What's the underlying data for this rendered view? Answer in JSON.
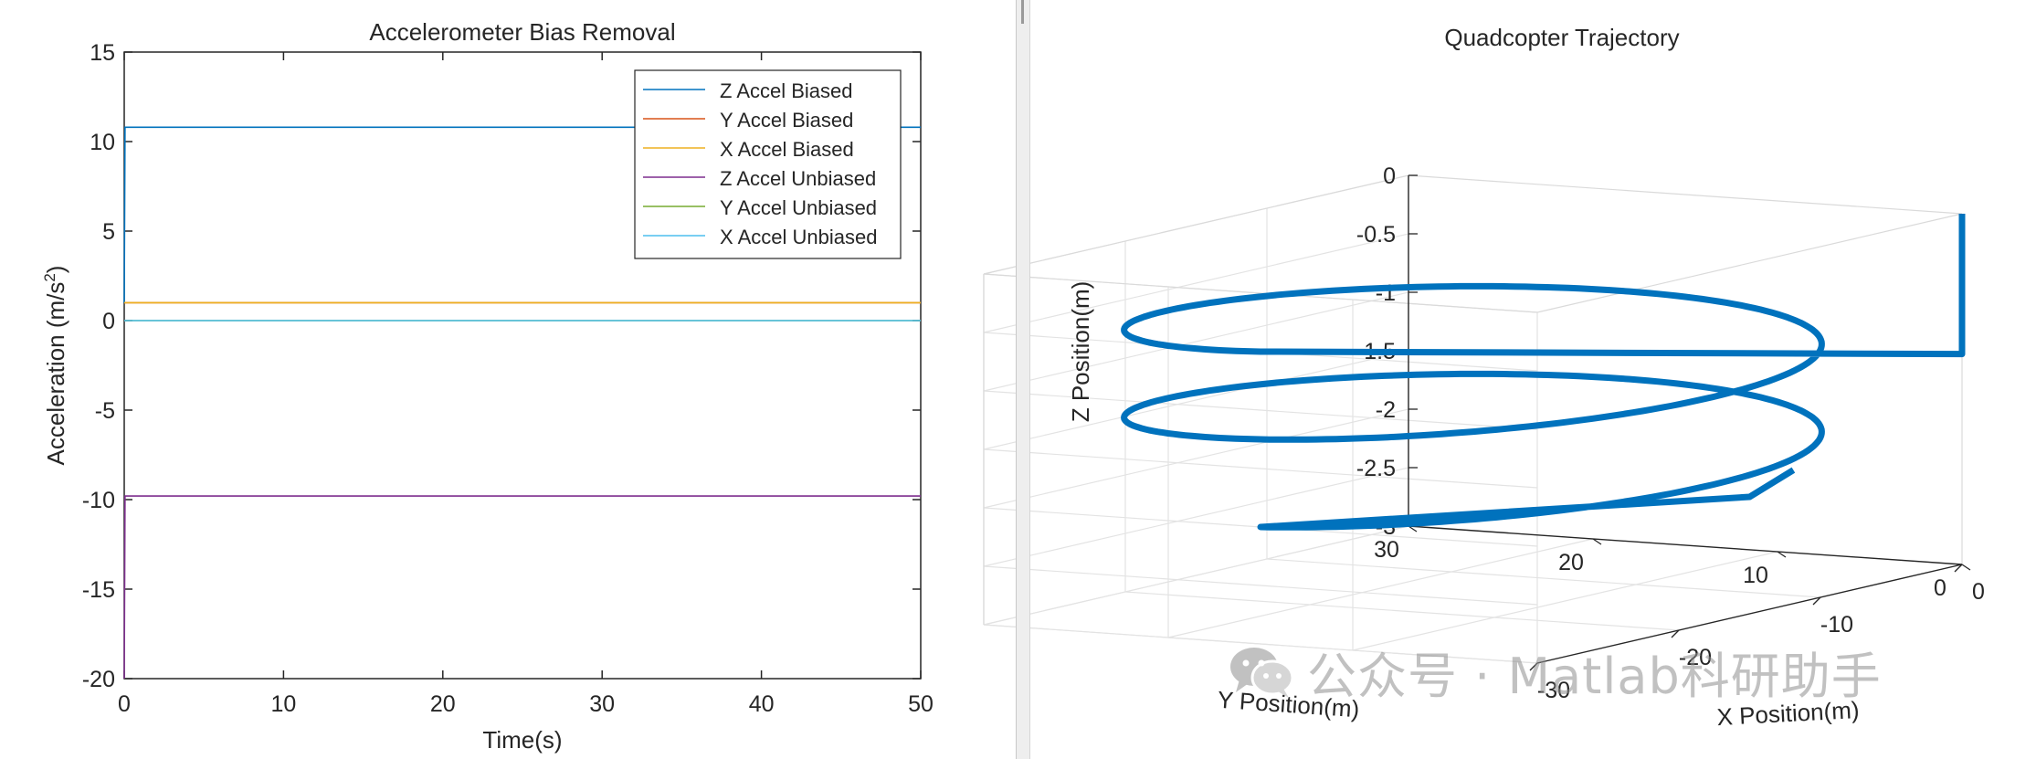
{
  "chart_data": [
    {
      "type": "line",
      "title": "Accelerometer Bias Removal",
      "xlabel": "Time(s)",
      "ylabel": "Acceleration (m/s",
      "ylabel_sup": "2",
      "ylabel_close": ")",
      "xlim": [
        0,
        50
      ],
      "ylim": [
        -20,
        15
      ],
      "xticks": [
        0,
        10,
        20,
        30,
        40,
        50
      ],
      "yticks": [
        15,
        10,
        5,
        0,
        -5,
        -10,
        -15,
        -20
      ],
      "grid": false,
      "legend_position": "top-right",
      "series": [
        {
          "name": "Z Accel Biased",
          "color": "#0072BD",
          "x": [
            0,
            0.05,
            50
          ],
          "y": [
            1.0,
            10.8,
            10.8
          ]
        },
        {
          "name": "Y Accel Biased",
          "color": "#D95319",
          "x": [
            0,
            0.05,
            50
          ],
          "y": [
            1.0,
            1.0,
            1.0
          ]
        },
        {
          "name": "X Accel Biased",
          "color": "#EDB120",
          "x": [
            0,
            0.05,
            50
          ],
          "y": [
            1.0,
            1.0,
            1.0
          ]
        },
        {
          "name": "Z Accel Unbiased",
          "color": "#7E2F8E",
          "x": [
            0,
            0.05,
            50
          ],
          "y": [
            -20.0,
            -9.8,
            -9.8
          ]
        },
        {
          "name": "Y Accel Unbiased",
          "color": "#77AC30",
          "x": [
            0,
            0.05,
            50
          ],
          "y": [
            0.0,
            0.0,
            0.0
          ]
        },
        {
          "name": "X Accel Unbiased",
          "color": "#4DBEEE",
          "x": [
            0,
            0.05,
            50
          ],
          "y": [
            0.0,
            0.0,
            0.0
          ]
        }
      ]
    },
    {
      "type": "line3d",
      "title": "Quadcopter Trajectory",
      "xlabel": "X Position(m)",
      "ylabel": "Y Position(m)",
      "zlabel": "Z Position(m)",
      "xlim": [
        -30,
        0
      ],
      "ylim": [
        0,
        30
      ],
      "zlim": [
        -3,
        0
      ],
      "xticks": [
        0,
        -10,
        -20,
        -30
      ],
      "yticks": [
        30,
        20,
        10,
        0
      ],
      "zticks": [
        0,
        -0.5,
        -1,
        -1.5,
        -2,
        -2.5,
        -3
      ],
      "zaxis_reversed": true,
      "grid": true,
      "series": [
        {
          "name": "",
          "color": "#0072BD",
          "helix": {
            "center_x": -15,
            "center_y": 15,
            "radius": 15,
            "start_angle_deg": 0,
            "turns": 2,
            "z_start": -0.5,
            "z_end": -2.0
          },
          "initial_segment": {
            "x": [
              0,
              0
            ],
            "y": [
              0,
              0
            ],
            "z": [
              0,
              -1.2
            ]
          },
          "final_segment": {
            "x": [
              -15,
              -8
            ],
            "y": [
              0,
              3
            ],
            "z": [
              -2.0,
              -2.0
            ]
          }
        }
      ]
    }
  ],
  "watermark": {
    "logo": "wechat-icon",
    "text": "公众号 · Matlab科研助手"
  }
}
